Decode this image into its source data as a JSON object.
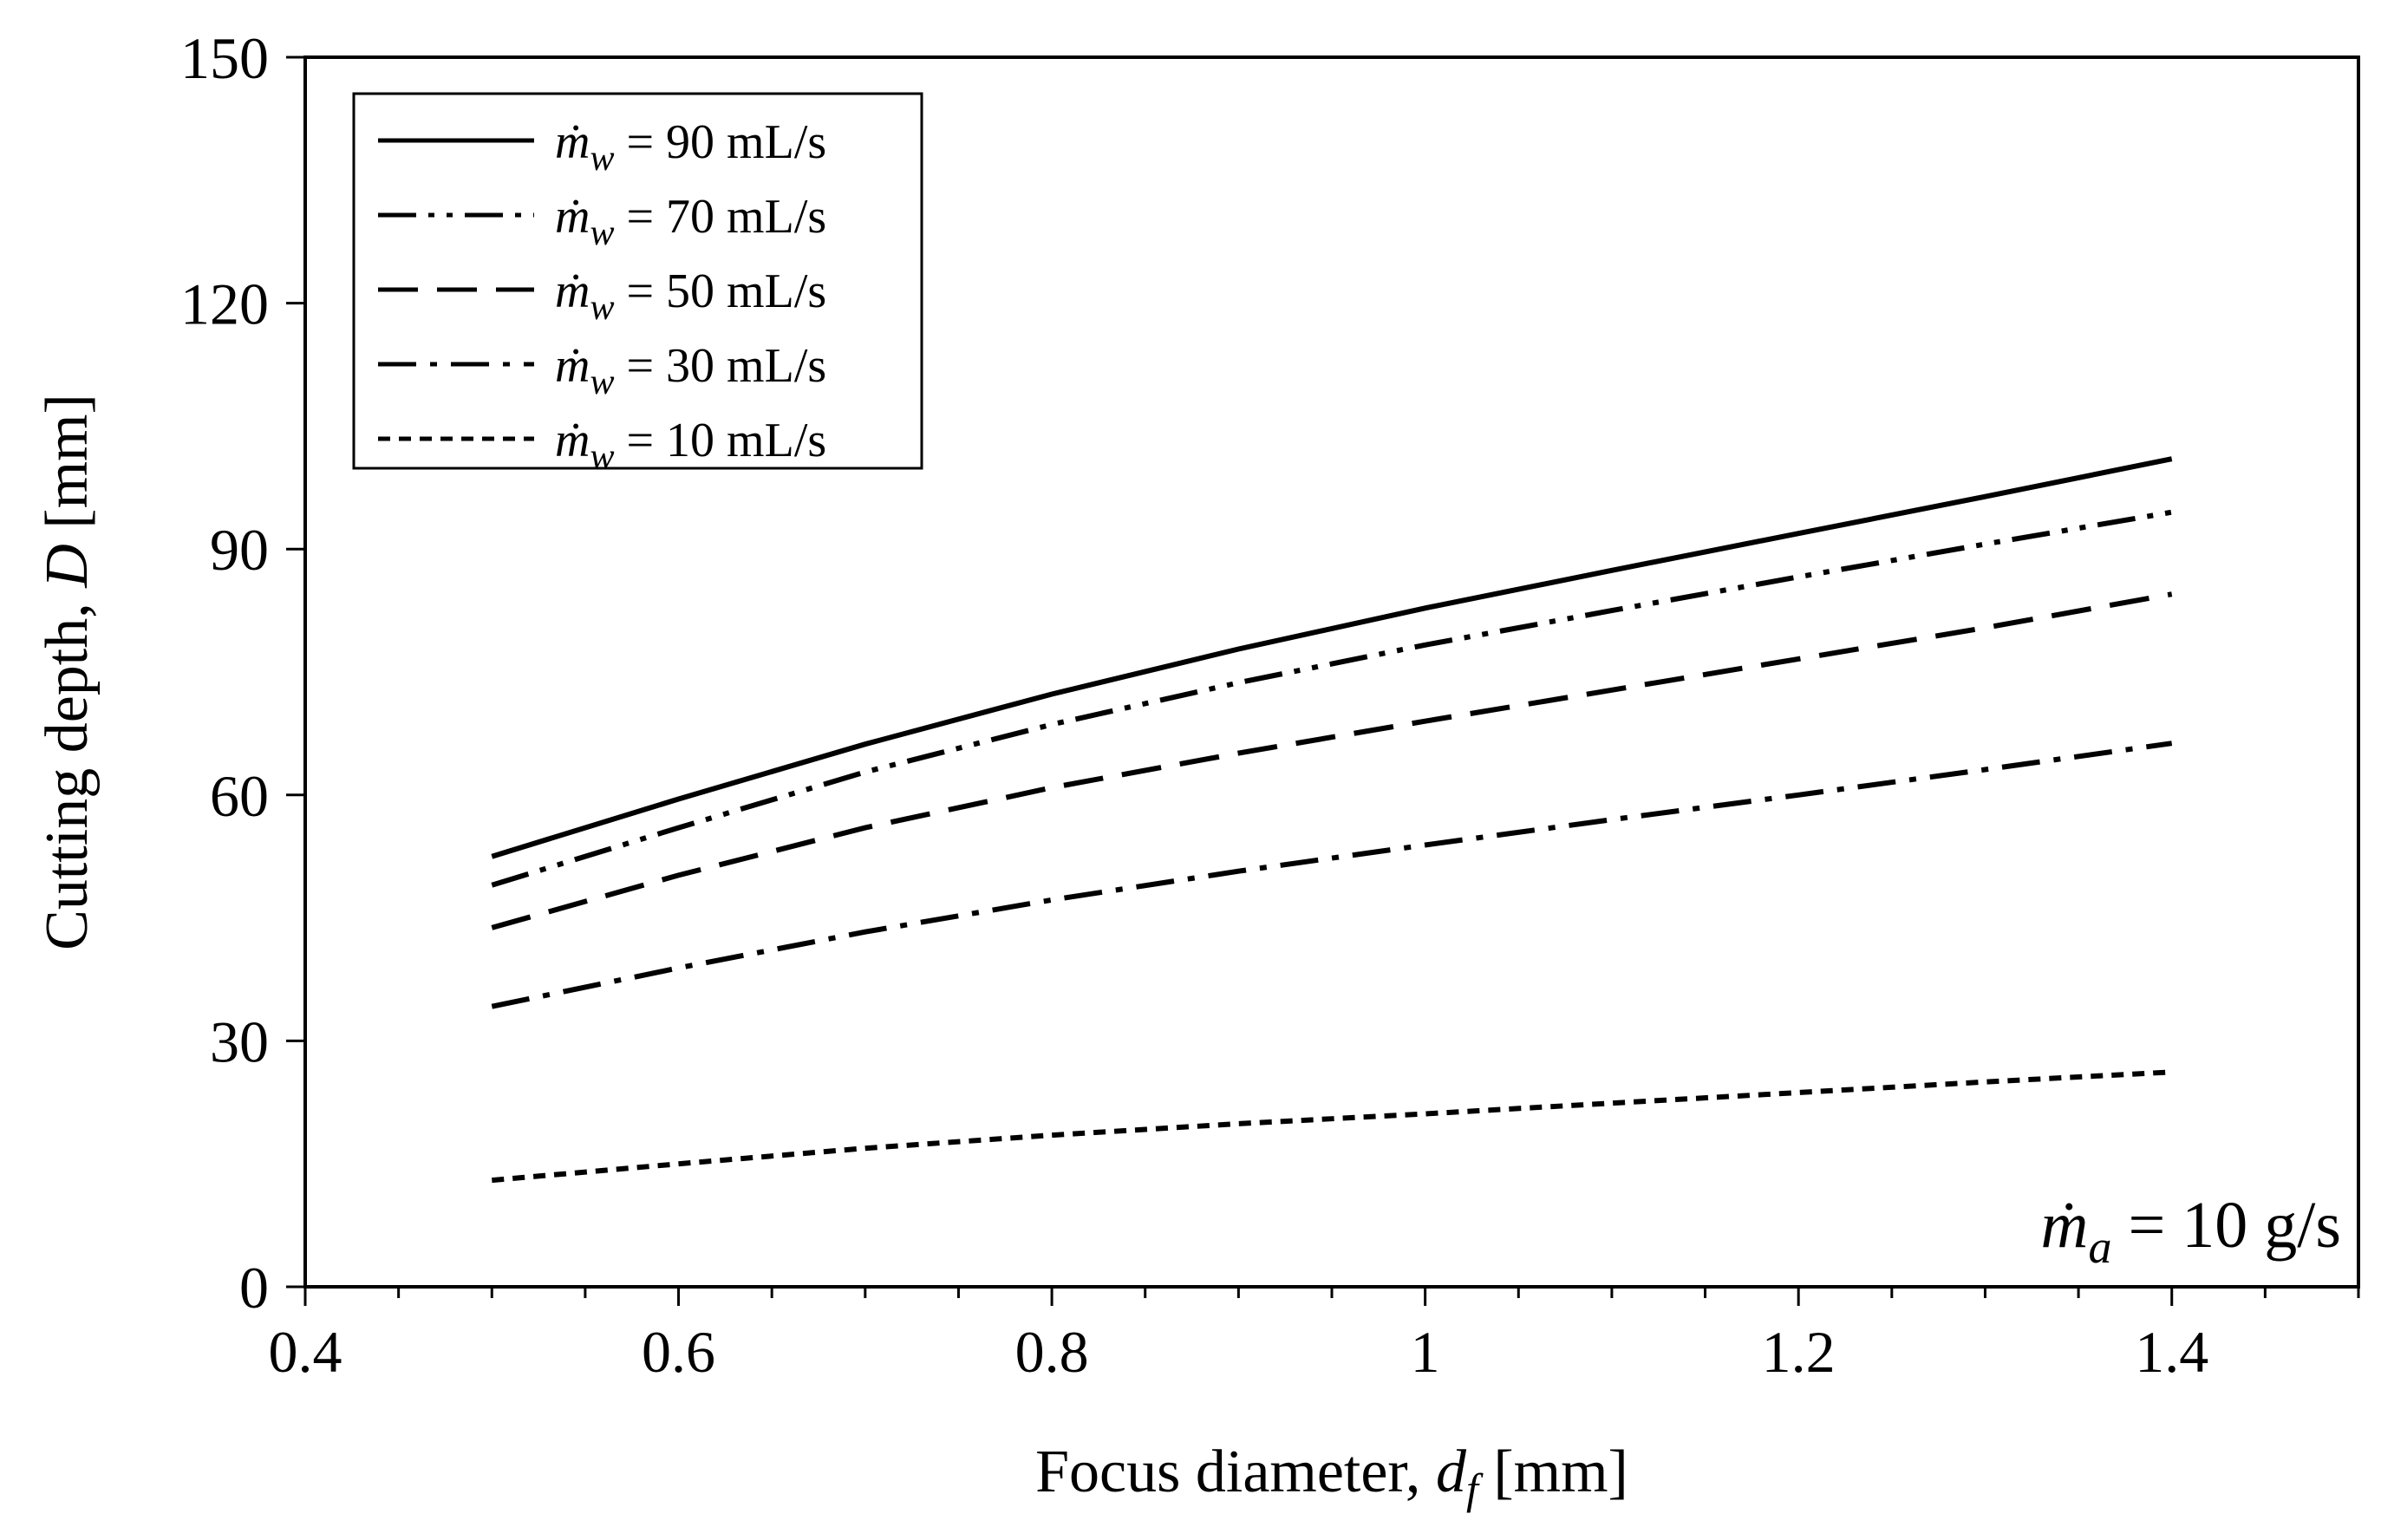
{
  "chart_data": {
    "type": "line",
    "xlabel": "Focus diameter, ",
    "xlabel_var": "d",
    "xlabel_sub": "f",
    "xlabel_unit": " [mm]",
    "ylabel": "Cutting depth, ",
    "ylabel_var": "D",
    "ylabel_unit": " [mm]",
    "xlim": [
      0.4,
      1.5
    ],
    "ylim": [
      0,
      150
    ],
    "xticks": [
      0.4,
      0.6,
      0.8,
      1.0,
      1.2,
      1.4
    ],
    "xtick_labels": [
      "0.4",
      "0.6",
      "0.8",
      "1",
      "1.2",
      "1.4"
    ],
    "yticks": [
      0,
      30,
      60,
      90,
      120,
      150
    ],
    "ytick_labels": [
      "0",
      "30",
      "60",
      "90",
      "120",
      "150"
    ],
    "grid": false,
    "legend_position": "top-left",
    "x": [
      0.5,
      0.6,
      0.7,
      0.8,
      0.9,
      1.0,
      1.1,
      1.2,
      1.3,
      1.4
    ],
    "series": [
      {
        "name": "ṁw = 90 mL/s",
        "symbol": "ṁ",
        "sub": "w",
        "value": "90 mL/s",
        "style": "solid",
        "values": [
          52.5,
          59.5,
          66.2,
          72.3,
          77.8,
          82.8,
          87.4,
          91.9,
          96.4,
          101.0
        ]
      },
      {
        "name": "ṁw = 70 mL/s",
        "symbol": "ṁ",
        "sub": "w",
        "value": "70 mL/s",
        "style": "dash-dot-dot",
        "values": [
          49.0,
          56.0,
          62.8,
          68.6,
          73.7,
          78.3,
          82.5,
          86.6,
          90.6,
          94.5
        ]
      },
      {
        "name": "ṁw = 50 mL/s",
        "symbol": "ṁ",
        "sub": "w",
        "value": "50 mL/s",
        "style": "dashed",
        "values": [
          43.8,
          50.2,
          56.0,
          60.9,
          65.1,
          69.0,
          72.8,
          76.6,
          80.4,
          84.5
        ]
      },
      {
        "name": "ṁw = 30 mL/s",
        "symbol": "ṁ",
        "sub": "w",
        "value": "30 mL/s",
        "style": "dash-dot",
        "values": [
          34.2,
          38.9,
          43.3,
          47.2,
          50.7,
          53.9,
          57.0,
          60.0,
          63.1,
          66.3
        ]
      },
      {
        "name": "ṁw = 10 mL/s",
        "symbol": "ṁ",
        "sub": "w",
        "value": "10 mL/s",
        "style": "dotted",
        "values": [
          13.0,
          15.0,
          16.9,
          18.5,
          19.9,
          21.1,
          22.4,
          23.7,
          25.0,
          26.2
        ]
      }
    ],
    "annotation": {
      "symbol": "ṁ",
      "sub": "a",
      "text": " = 10 g/s",
      "position": "bottom-right"
    }
  }
}
